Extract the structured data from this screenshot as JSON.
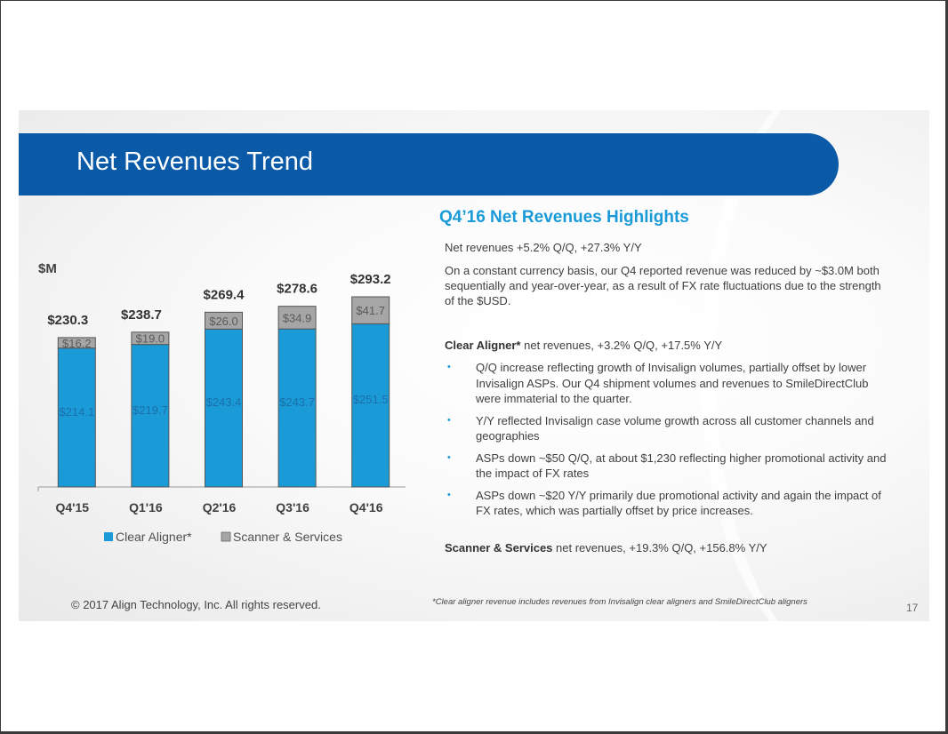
{
  "title": "Net Revenues Trend",
  "highlights": {
    "heading": "Q4’16 Net Revenues Highlights",
    "line1": "Net revenues +5.2% Q/Q, +27.3% Y/Y",
    "line2": "On a constant currency basis, our Q4 reported revenue was reduced by ~$3.0M both sequentially and year-over-year, as a result of FX rate fluctuations due to the strength of the $USD.",
    "clear_label": "Clear Aligner*",
    "clear_rest": " net revenues, +3.2% Q/Q, +17.5% Y/Y",
    "bullets": [
      "Q/Q increase reflecting growth of Invisalign volumes, partially offset by lower Invisalign ASPs. Our Q4 shipment volumes and revenues to SmileDirectClub were immaterial to the quarter.",
      "Y/Y reflected Invisalign case volume growth across all customer channels and geographies",
      "ASPs down ~$50 Q/Q, at about $1,230 reflecting higher promotional activity and the impact of FX rates",
      "ASPs down ~$20 Y/Y primarily due promotional activity and again the impact of FX rates, which was partially offset by price increases."
    ],
    "bullet_mark": "•",
    "scanner_label": "Scanner & Services",
    "scanner_rest": " net revenues, +19.3% Q/Q, +156.8% Y/Y"
  },
  "footer": "© 2017 Align Technology, Inc. All rights reserved.",
  "footnote": "*Clear aligner revenue includes revenues from Invisalign clear aligners and SmileDirectClub aligners",
  "page_number": "17",
  "colors": {
    "banner": "#0a5aa8",
    "clear": "#1a9bd8",
    "scanner": "#a6a6a6",
    "heading": "#1a9bd8"
  },
  "chart_data": {
    "type": "bar",
    "stacked": true,
    "unit_label": "$M",
    "categories": [
      "Q4'15",
      "Q1'16",
      "Q2'16",
      "Q3'16",
      "Q4'16"
    ],
    "series": [
      {
        "name": "Clear Aligner*",
        "values": [
          214.1,
          219.7,
          243.4,
          243.7,
          251.5
        ],
        "labels": [
          "$214.1",
          "$219.7",
          "$243.4",
          "$243.7",
          "$251.5"
        ]
      },
      {
        "name": "Scanner & Services",
        "values": [
          16.2,
          19.0,
          26.0,
          34.9,
          41.7
        ],
        "labels": [
          "$16.2",
          "$19.0",
          "$26.0",
          "$34.9",
          "$41.7"
        ]
      }
    ],
    "totals": [
      230.3,
      238.7,
      269.4,
      278.6,
      293.2
    ],
    "total_labels": [
      "$230.3",
      "$238.7",
      "$269.4",
      "$278.6",
      "$293.2"
    ],
    "ylim": [
      0,
      293.2
    ],
    "legend": "bottom"
  }
}
